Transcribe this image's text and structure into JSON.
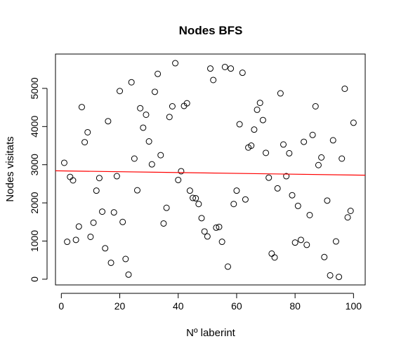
{
  "chart_data": {
    "type": "scatter",
    "title": "Nodes BFS",
    "xlabel": "Nº laberint",
    "ylabel": "Nodes visitats",
    "xlim": [
      -2,
      104
    ],
    "ylim": [
      -150,
      5900
    ],
    "xticks": [
      0,
      20,
      40,
      60,
      80,
      100
    ],
    "yticks": [
      0,
      1000,
      2000,
      3000,
      4000,
      5000
    ],
    "grid": false,
    "legend": "none",
    "points": [
      {
        "x": 1,
        "y": 3050
      },
      {
        "x": 2,
        "y": 980
      },
      {
        "x": 3,
        "y": 2680
      },
      {
        "x": 4,
        "y": 2590
      },
      {
        "x": 5,
        "y": 1030
      },
      {
        "x": 6,
        "y": 1380
      },
      {
        "x": 7,
        "y": 4510
      },
      {
        "x": 8,
        "y": 3590
      },
      {
        "x": 9,
        "y": 3850
      },
      {
        "x": 10,
        "y": 1110
      },
      {
        "x": 11,
        "y": 1480
      },
      {
        "x": 12,
        "y": 2320
      },
      {
        "x": 13,
        "y": 2650
      },
      {
        "x": 14,
        "y": 1770
      },
      {
        "x": 15,
        "y": 810
      },
      {
        "x": 16,
        "y": 4140
      },
      {
        "x": 17,
        "y": 430
      },
      {
        "x": 18,
        "y": 1750
      },
      {
        "x": 19,
        "y": 2700
      },
      {
        "x": 20,
        "y": 4930
      },
      {
        "x": 21,
        "y": 1500
      },
      {
        "x": 22,
        "y": 530
      },
      {
        "x": 23,
        "y": 120
      },
      {
        "x": 24,
        "y": 5160
      },
      {
        "x": 25,
        "y": 3160
      },
      {
        "x": 26,
        "y": 2330
      },
      {
        "x": 27,
        "y": 4480
      },
      {
        "x": 28,
        "y": 3970
      },
      {
        "x": 29,
        "y": 4310
      },
      {
        "x": 30,
        "y": 3610
      },
      {
        "x": 31,
        "y": 3010
      },
      {
        "x": 32,
        "y": 4910
      },
      {
        "x": 33,
        "y": 5380
      },
      {
        "x": 34,
        "y": 3250
      },
      {
        "x": 35,
        "y": 1460
      },
      {
        "x": 36,
        "y": 1870
      },
      {
        "x": 37,
        "y": 4250
      },
      {
        "x": 38,
        "y": 4530
      },
      {
        "x": 39,
        "y": 5660
      },
      {
        "x": 40,
        "y": 2600
      },
      {
        "x": 41,
        "y": 2830
      },
      {
        "x": 42,
        "y": 4540
      },
      {
        "x": 43,
        "y": 4610
      },
      {
        "x": 44,
        "y": 2320
      },
      {
        "x": 45,
        "y": 2130
      },
      {
        "x": 46,
        "y": 2120
      },
      {
        "x": 47,
        "y": 1970
      },
      {
        "x": 48,
        "y": 1600
      },
      {
        "x": 49,
        "y": 1250
      },
      {
        "x": 50,
        "y": 1120
      },
      {
        "x": 51,
        "y": 5520
      },
      {
        "x": 52,
        "y": 5220
      },
      {
        "x": 53,
        "y": 1350
      },
      {
        "x": 54,
        "y": 1370
      },
      {
        "x": 55,
        "y": 980
      },
      {
        "x": 56,
        "y": 5560
      },
      {
        "x": 57,
        "y": 330
      },
      {
        "x": 58,
        "y": 5520
      },
      {
        "x": 59,
        "y": 1970
      },
      {
        "x": 60,
        "y": 2320
      },
      {
        "x": 61,
        "y": 4060
      },
      {
        "x": 62,
        "y": 5410
      },
      {
        "x": 63,
        "y": 2090
      },
      {
        "x": 64,
        "y": 3450
      },
      {
        "x": 65,
        "y": 3500
      },
      {
        "x": 66,
        "y": 3920
      },
      {
        "x": 67,
        "y": 4440
      },
      {
        "x": 68,
        "y": 4620
      },
      {
        "x": 69,
        "y": 4170
      },
      {
        "x": 70,
        "y": 3310
      },
      {
        "x": 71,
        "y": 2660
      },
      {
        "x": 72,
        "y": 670
      },
      {
        "x": 73,
        "y": 570
      },
      {
        "x": 74,
        "y": 2380
      },
      {
        "x": 75,
        "y": 4870
      },
      {
        "x": 76,
        "y": 3530
      },
      {
        "x": 77,
        "y": 2700
      },
      {
        "x": 78,
        "y": 3300
      },
      {
        "x": 79,
        "y": 2200
      },
      {
        "x": 80,
        "y": 960
      },
      {
        "x": 81,
        "y": 1920
      },
      {
        "x": 82,
        "y": 1030
      },
      {
        "x": 83,
        "y": 3600
      },
      {
        "x": 84,
        "y": 900
      },
      {
        "x": 85,
        "y": 1680
      },
      {
        "x": 86,
        "y": 3780
      },
      {
        "x": 87,
        "y": 4530
      },
      {
        "x": 88,
        "y": 2990
      },
      {
        "x": 89,
        "y": 3190
      },
      {
        "x": 90,
        "y": 580
      },
      {
        "x": 91,
        "y": 2060
      },
      {
        "x": 92,
        "y": 100
      },
      {
        "x": 93,
        "y": 3640
      },
      {
        "x": 94,
        "y": 990
      },
      {
        "x": 95,
        "y": 60
      },
      {
        "x": 96,
        "y": 3160
      },
      {
        "x": 97,
        "y": 4990
      },
      {
        "x": 98,
        "y": 1620
      },
      {
        "x": 99,
        "y": 1790
      },
      {
        "x": 100,
        "y": 4100
      }
    ],
    "trendline": {
      "color": "#ff0000",
      "from": {
        "x": -2,
        "y": 2840
      },
      "to": {
        "x": 104,
        "y": 2725
      }
    },
    "point_color": "#000000"
  }
}
